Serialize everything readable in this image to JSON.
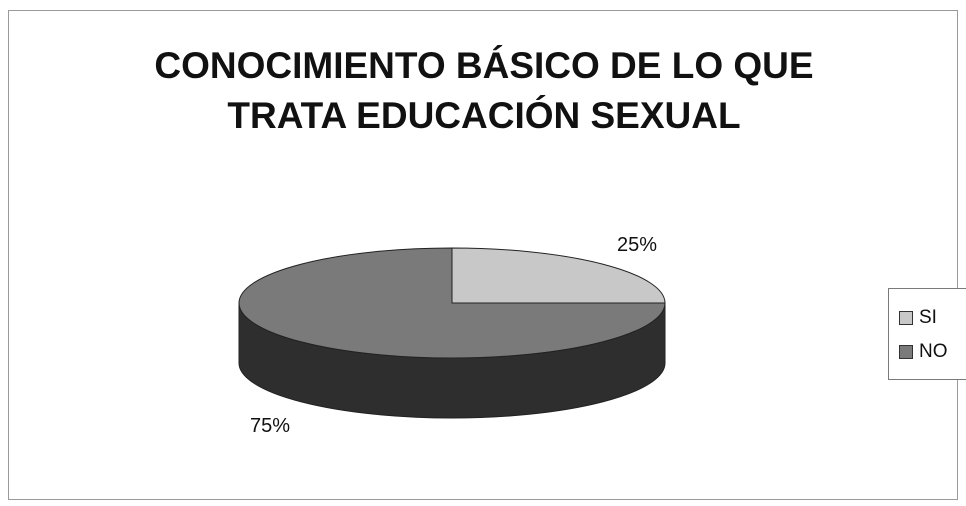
{
  "chart_data": {
    "type": "pie",
    "title_lines": [
      "CONOCIMIENTO BÁSICO DE LO QUE",
      "TRATA EDUCACIÓN SEXUAL"
    ],
    "categories": [
      "SI",
      "NO"
    ],
    "values": [
      25,
      75
    ],
    "data_labels": [
      "25%",
      "75%"
    ],
    "colors": [
      "#c8c8c8",
      "#7a7a7a"
    ],
    "three_d": true,
    "legend_position": "right"
  }
}
